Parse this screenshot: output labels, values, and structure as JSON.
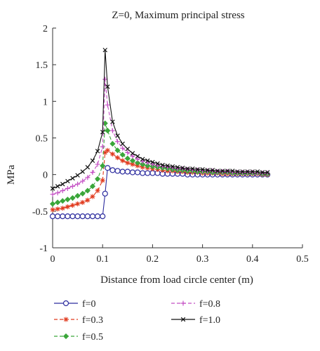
{
  "chart_data": {
    "type": "line",
    "title": "Z=0, Maximum principal stress",
    "xlabel": "Distance from load circle center (m)",
    "ylabel": "MPa",
    "xlim": [
      0,
      0.5
    ],
    "ylim": [
      -1,
      2
    ],
    "xticks": [
      "0",
      "0.1",
      "0.2",
      "0.3",
      "0.4",
      "0.5"
    ],
    "yticks": [
      "-1",
      "-0.5",
      "0",
      "0.5",
      "1",
      "1.5",
      "2"
    ],
    "grid": false,
    "legend_position": "bottom",
    "series": [
      {
        "name": "f=0",
        "color": "#2b2b9e",
        "marker": "circle",
        "dash": "solid",
        "points": [
          [
            0.0,
            -0.57
          ],
          [
            0.01,
            -0.57
          ],
          [
            0.02,
            -0.57
          ],
          [
            0.03,
            -0.57
          ],
          [
            0.04,
            -0.57
          ],
          [
            0.05,
            -0.57
          ],
          [
            0.06,
            -0.57
          ],
          [
            0.07,
            -0.57
          ],
          [
            0.08,
            -0.57
          ],
          [
            0.09,
            -0.57
          ],
          [
            0.1,
            -0.57
          ],
          [
            0.105,
            -0.26
          ],
          [
            0.11,
            0.09
          ],
          [
            0.12,
            0.06
          ],
          [
            0.13,
            0.05
          ],
          [
            0.14,
            0.04
          ],
          [
            0.15,
            0.04
          ],
          [
            0.16,
            0.03
          ],
          [
            0.17,
            0.03
          ],
          [
            0.18,
            0.02
          ],
          [
            0.19,
            0.02
          ],
          [
            0.2,
            0.02
          ],
          [
            0.21,
            0.02
          ],
          [
            0.22,
            0.01
          ],
          [
            0.23,
            0.01
          ],
          [
            0.24,
            0.01
          ],
          [
            0.25,
            0.01
          ],
          [
            0.26,
            0.01
          ],
          [
            0.27,
            0.0
          ],
          [
            0.28,
            0.0
          ],
          [
            0.29,
            0.0
          ],
          [
            0.3,
            0.0
          ],
          [
            0.31,
            0.0
          ],
          [
            0.32,
            0.0
          ],
          [
            0.33,
            0.0
          ],
          [
            0.34,
            0.0
          ],
          [
            0.35,
            0.0
          ],
          [
            0.36,
            0.0
          ],
          [
            0.37,
            0.0
          ],
          [
            0.38,
            0.0
          ],
          [
            0.39,
            0.0
          ],
          [
            0.4,
            0.0
          ],
          [
            0.41,
            0.0
          ],
          [
            0.42,
            0.0
          ],
          [
            0.43,
            0.0
          ]
        ]
      },
      {
        "name": "f=0.3",
        "color": "#e03a1e",
        "marker": "asterisk",
        "dash": "dash",
        "points": [
          [
            0.0,
            -0.48
          ],
          [
            0.01,
            -0.47
          ],
          [
            0.02,
            -0.46
          ],
          [
            0.03,
            -0.44
          ],
          [
            0.04,
            -0.42
          ],
          [
            0.05,
            -0.4
          ],
          [
            0.06,
            -0.38
          ],
          [
            0.07,
            -0.35
          ],
          [
            0.08,
            -0.3
          ],
          [
            0.09,
            -0.22
          ],
          [
            0.1,
            -0.08
          ],
          [
            0.105,
            0.3
          ],
          [
            0.11,
            0.33
          ],
          [
            0.12,
            0.28
          ],
          [
            0.13,
            0.23
          ],
          [
            0.14,
            0.19
          ],
          [
            0.15,
            0.16
          ],
          [
            0.16,
            0.14
          ],
          [
            0.17,
            0.12
          ],
          [
            0.18,
            0.1
          ],
          [
            0.19,
            0.09
          ],
          [
            0.2,
            0.08
          ],
          [
            0.21,
            0.07
          ],
          [
            0.22,
            0.06
          ],
          [
            0.23,
            0.05
          ],
          [
            0.24,
            0.05
          ],
          [
            0.25,
            0.04
          ],
          [
            0.26,
            0.04
          ],
          [
            0.27,
            0.03
          ],
          [
            0.28,
            0.03
          ],
          [
            0.29,
            0.03
          ],
          [
            0.3,
            0.02
          ],
          [
            0.31,
            0.02
          ],
          [
            0.32,
            0.02
          ],
          [
            0.33,
            0.02
          ],
          [
            0.34,
            0.01
          ],
          [
            0.35,
            0.01
          ],
          [
            0.36,
            0.01
          ],
          [
            0.37,
            0.01
          ],
          [
            0.38,
            0.01
          ],
          [
            0.39,
            0.01
          ],
          [
            0.4,
            0.01
          ],
          [
            0.41,
            0.01
          ],
          [
            0.42,
            0.0
          ],
          [
            0.43,
            0.0
          ]
        ]
      },
      {
        "name": "f=0.5",
        "color": "#3aa63a",
        "marker": "diamond",
        "dash": "dash",
        "points": [
          [
            0.0,
            -0.4
          ],
          [
            0.01,
            -0.38
          ],
          [
            0.02,
            -0.36
          ],
          [
            0.03,
            -0.34
          ],
          [
            0.04,
            -0.32
          ],
          [
            0.05,
            -0.29
          ],
          [
            0.06,
            -0.26
          ],
          [
            0.07,
            -0.22
          ],
          [
            0.08,
            -0.16
          ],
          [
            0.09,
            -0.06
          ],
          [
            0.1,
            0.12
          ],
          [
            0.105,
            0.7
          ],
          [
            0.11,
            0.6
          ],
          [
            0.12,
            0.42
          ],
          [
            0.13,
            0.33
          ],
          [
            0.14,
            0.27
          ],
          [
            0.15,
            0.22
          ],
          [
            0.16,
            0.19
          ],
          [
            0.17,
            0.16
          ],
          [
            0.18,
            0.14
          ],
          [
            0.19,
            0.12
          ],
          [
            0.2,
            0.11
          ],
          [
            0.21,
            0.1
          ],
          [
            0.22,
            0.09
          ],
          [
            0.23,
            0.08
          ],
          [
            0.24,
            0.07
          ],
          [
            0.25,
            0.06
          ],
          [
            0.26,
            0.06
          ],
          [
            0.27,
            0.05
          ],
          [
            0.28,
            0.05
          ],
          [
            0.29,
            0.04
          ],
          [
            0.3,
            0.04
          ],
          [
            0.31,
            0.04
          ],
          [
            0.32,
            0.03
          ],
          [
            0.33,
            0.03
          ],
          [
            0.34,
            0.03
          ],
          [
            0.35,
            0.03
          ],
          [
            0.36,
            0.02
          ],
          [
            0.37,
            0.02
          ],
          [
            0.38,
            0.02
          ],
          [
            0.39,
            0.02
          ],
          [
            0.4,
            0.02
          ],
          [
            0.41,
            0.02
          ],
          [
            0.42,
            0.01
          ],
          [
            0.43,
            0.01
          ]
        ]
      },
      {
        "name": "f=0.8",
        "color": "#c44fc4",
        "marker": "plus",
        "dash": "dash",
        "points": [
          [
            0.0,
            -0.27
          ],
          [
            0.01,
            -0.25
          ],
          [
            0.02,
            -0.22
          ],
          [
            0.03,
            -0.19
          ],
          [
            0.04,
            -0.16
          ],
          [
            0.05,
            -0.13
          ],
          [
            0.06,
            -0.09
          ],
          [
            0.07,
            -0.04
          ],
          [
            0.08,
            0.03
          ],
          [
            0.09,
            0.14
          ],
          [
            0.1,
            0.38
          ],
          [
            0.105,
            1.3
          ],
          [
            0.11,
            0.95
          ],
          [
            0.12,
            0.6
          ],
          [
            0.13,
            0.45
          ],
          [
            0.14,
            0.36
          ],
          [
            0.15,
            0.3
          ],
          [
            0.16,
            0.25
          ],
          [
            0.17,
            0.21
          ],
          [
            0.18,
            0.18
          ],
          [
            0.19,
            0.16
          ],
          [
            0.2,
            0.14
          ],
          [
            0.21,
            0.12
          ],
          [
            0.22,
            0.11
          ],
          [
            0.23,
            0.1
          ],
          [
            0.24,
            0.09
          ],
          [
            0.25,
            0.08
          ],
          [
            0.26,
            0.08
          ],
          [
            0.27,
            0.07
          ],
          [
            0.28,
            0.06
          ],
          [
            0.29,
            0.06
          ],
          [
            0.3,
            0.05
          ],
          [
            0.31,
            0.05
          ],
          [
            0.32,
            0.05
          ],
          [
            0.33,
            0.04
          ],
          [
            0.34,
            0.04
          ],
          [
            0.35,
            0.04
          ],
          [
            0.36,
            0.03
          ],
          [
            0.37,
            0.03
          ],
          [
            0.38,
            0.03
          ],
          [
            0.39,
            0.03
          ],
          [
            0.4,
            0.03
          ],
          [
            0.41,
            0.02
          ],
          [
            0.42,
            0.02
          ],
          [
            0.43,
            0.02
          ]
        ]
      },
      {
        "name": "f=1.0",
        "color": "#111111",
        "marker": "x",
        "dash": "solid",
        "points": [
          [
            0.0,
            -0.19
          ],
          [
            0.01,
            -0.16
          ],
          [
            0.02,
            -0.13
          ],
          [
            0.03,
            -0.09
          ],
          [
            0.04,
            -0.05
          ],
          [
            0.05,
            -0.01
          ],
          [
            0.06,
            0.04
          ],
          [
            0.07,
            0.1
          ],
          [
            0.08,
            0.19
          ],
          [
            0.09,
            0.32
          ],
          [
            0.1,
            0.58
          ],
          [
            0.105,
            1.7
          ],
          [
            0.11,
            1.2
          ],
          [
            0.12,
            0.72
          ],
          [
            0.13,
            0.53
          ],
          [
            0.14,
            0.42
          ],
          [
            0.15,
            0.35
          ],
          [
            0.16,
            0.29
          ],
          [
            0.17,
            0.25
          ],
          [
            0.18,
            0.21
          ],
          [
            0.19,
            0.19
          ],
          [
            0.2,
            0.17
          ],
          [
            0.21,
            0.15
          ],
          [
            0.22,
            0.13
          ],
          [
            0.23,
            0.12
          ],
          [
            0.24,
            0.11
          ],
          [
            0.25,
            0.1
          ],
          [
            0.26,
            0.09
          ],
          [
            0.27,
            0.08
          ],
          [
            0.28,
            0.08
          ],
          [
            0.29,
            0.07
          ],
          [
            0.3,
            0.07
          ],
          [
            0.31,
            0.06
          ],
          [
            0.32,
            0.06
          ],
          [
            0.33,
            0.05
          ],
          [
            0.34,
            0.05
          ],
          [
            0.35,
            0.05
          ],
          [
            0.36,
            0.05
          ],
          [
            0.37,
            0.04
          ],
          [
            0.38,
            0.04
          ],
          [
            0.39,
            0.04
          ],
          [
            0.4,
            0.04
          ],
          [
            0.41,
            0.04
          ],
          [
            0.42,
            0.03
          ],
          [
            0.43,
            0.03
          ]
        ]
      }
    ]
  }
}
